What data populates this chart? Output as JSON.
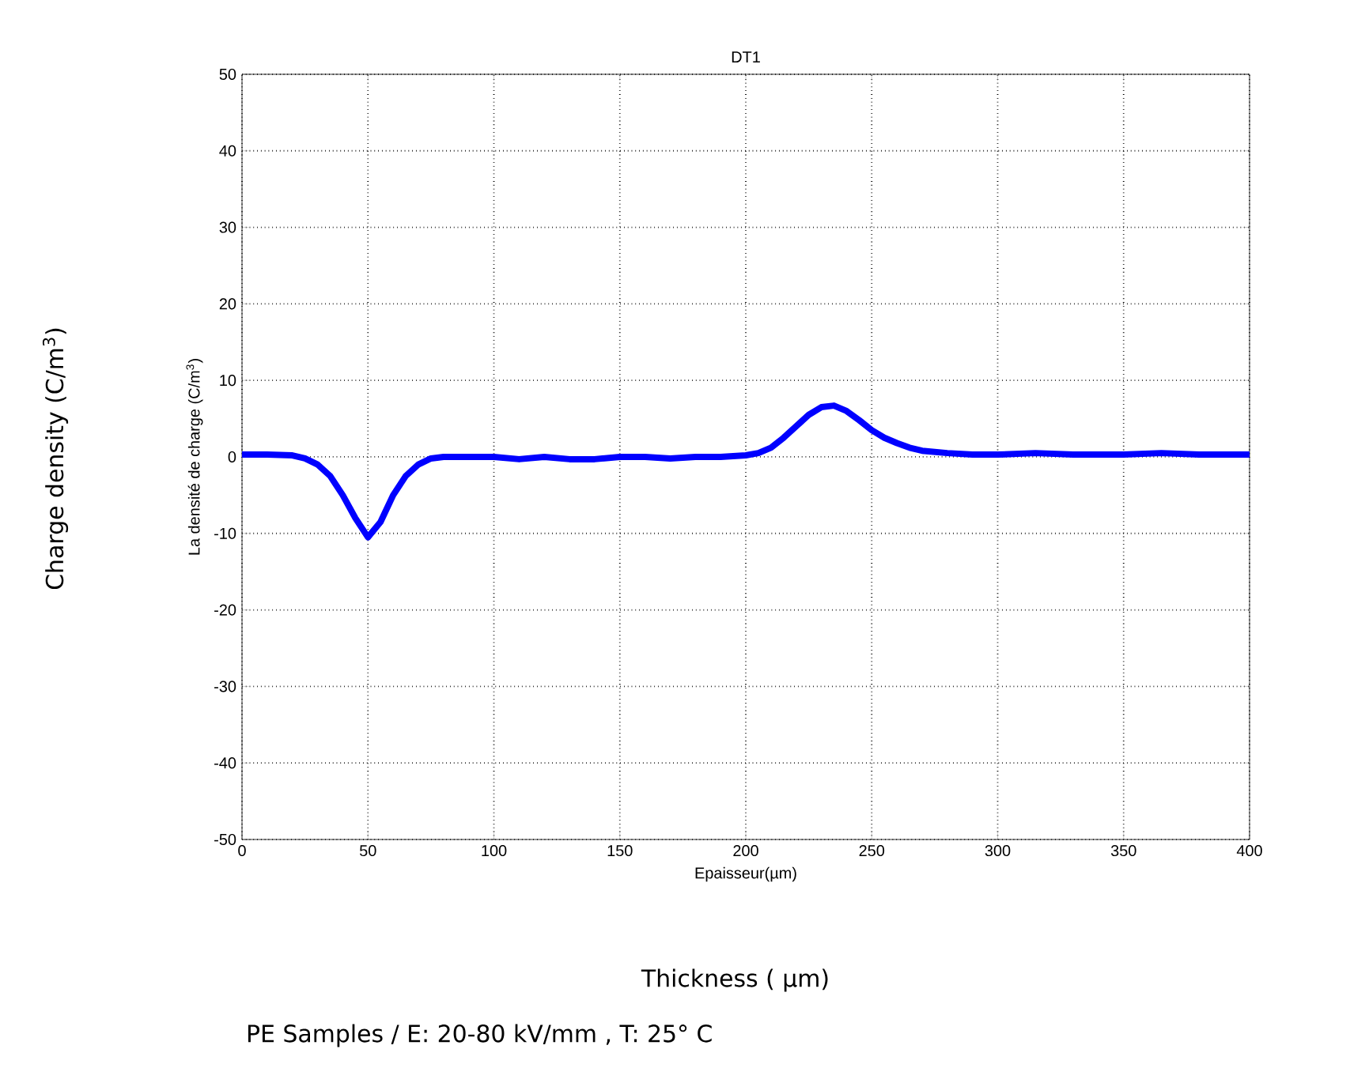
{
  "chart_data": {
    "type": "line",
    "title": "DT1",
    "xlabel": "Epaisseur(µm)",
    "ylabel": "La densité de charge (C/m$^{3}$)",
    "x": [
      0,
      10,
      20,
      25,
      30,
      35,
      40,
      45,
      50,
      55,
      60,
      65,
      70,
      75,
      80,
      100,
      110,
      120,
      130,
      140,
      150,
      160,
      170,
      180,
      190,
      200,
      205,
      210,
      215,
      220,
      225,
      230,
      235,
      240,
      245,
      250,
      255,
      260,
      265,
      270,
      280,
      290,
      300,
      315,
      330,
      350,
      365,
      380,
      400
    ],
    "series": [
      {
        "color": "#0000ff",
        "values": [
          0.3,
          0.3,
          0.2,
          -0.2,
          -1,
          -2.5,
          -5,
          -8,
          -10.5,
          -8.5,
          -5,
          -2.5,
          -1,
          -0.2,
          0,
          0,
          -0.3,
          0,
          -0.3,
          -0.3,
          0,
          0,
          -0.2,
          0,
          0,
          0.2,
          0.5,
          1.2,
          2.5,
          4,
          5.5,
          6.5,
          6.7,
          6,
          4.8,
          3.5,
          2.5,
          1.8,
          1.2,
          0.8,
          0.5,
          0.3,
          0.3,
          0.5,
          0.3,
          0.3,
          0.5,
          0.3,
          0.3
        ]
      }
    ],
    "xlim": [
      0,
      400
    ],
    "xticks": [
      0,
      50,
      100,
      150,
      200,
      250,
      300,
      350,
      400
    ],
    "ylim": [
      -50,
      50
    ],
    "yticks": [
      -50,
      -40,
      -30,
      -20,
      -10,
      0,
      10,
      20,
      30,
      40,
      50
    ],
    "grid": true,
    "line_style": "solid",
    "marker": "none",
    "annotations": [
      "Charge density (C/m$^{3}$)",
      "Thickness ( µm)",
      "PE Samples / E: 20-80 kV/mm , T: 25° C"
    ]
  }
}
